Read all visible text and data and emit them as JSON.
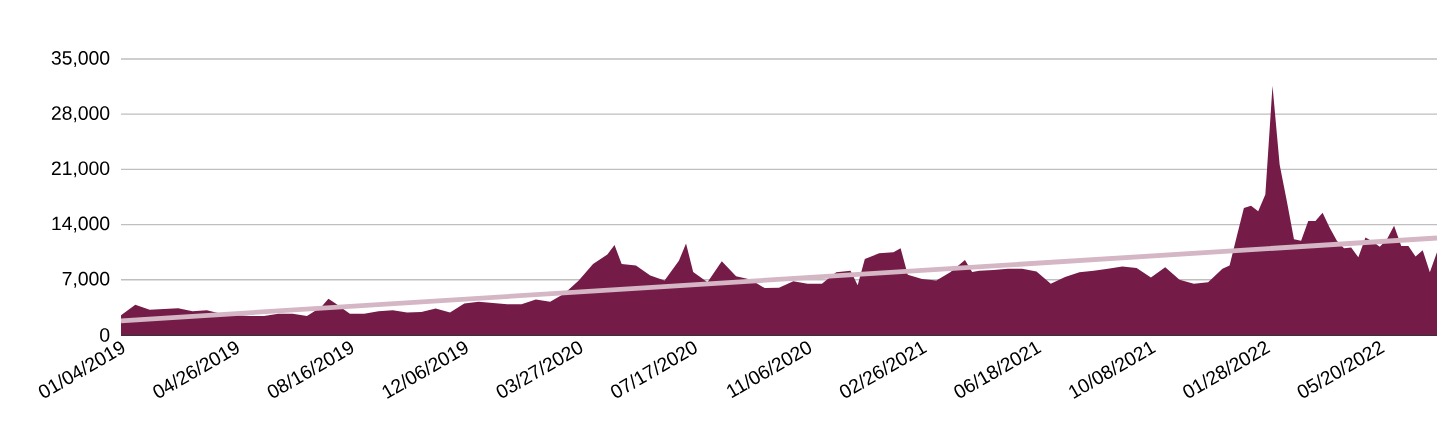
{
  "chart_data": {
    "type": "area",
    "xlim": [
      "2019-01-04",
      "2022-07-15"
    ],
    "xticks": [
      {
        "value": "2019-01-04",
        "label": "01/04/2019"
      },
      {
        "value": "2019-04-26",
        "label": "04/26/2019"
      },
      {
        "value": "2019-08-16",
        "label": "08/16/2019"
      },
      {
        "value": "2019-12-06",
        "label": "12/06/2019"
      },
      {
        "value": "2020-03-27",
        "label": "03/27/2020"
      },
      {
        "value": "2020-07-17",
        "label": "07/17/2020"
      },
      {
        "value": "2020-11-06",
        "label": "11/06/2020"
      },
      {
        "value": "2021-02-26",
        "label": "02/26/2021"
      },
      {
        "value": "2021-06-18",
        "label": "06/18/2021"
      },
      {
        "value": "2021-10-08",
        "label": "10/08/2021"
      },
      {
        "value": "2022-01-28",
        "label": "01/28/2022"
      },
      {
        "value": "2022-05-20",
        "label": "05/20/2022"
      }
    ],
    "ylim": [
      0,
      35000
    ],
    "yticks": [
      0,
      {
        "value": 7000,
        "label": "7,000"
      },
      {
        "value": 14000,
        "label": "14,000"
      },
      {
        "value": 21000,
        "label": "21,000"
      },
      {
        "value": 28000,
        "label": "28,000"
      },
      {
        "value": 35000,
        "label": "35,000"
      }
    ],
    "grid": "y",
    "series": [
      {
        "color": "#741b47",
        "x": [
          "2019-01-04",
          "2019-01-18",
          "2019-02-01",
          "2019-02-15",
          "2019-03-01",
          "2019-03-15",
          "2019-03-29",
          "2019-04-12",
          "2019-04-26",
          "2019-05-10",
          "2019-05-24",
          "2019-06-07",
          "2019-06-21",
          "2019-07-05",
          "2019-07-19",
          "2019-07-26",
          "2019-08-02",
          "2019-08-16",
          "2019-08-30",
          "2019-09-13",
          "2019-09-27",
          "2019-10-11",
          "2019-10-25",
          "2019-11-08",
          "2019-11-22",
          "2019-12-06",
          "2019-12-20",
          "2020-01-03",
          "2020-01-17",
          "2020-01-31",
          "2020-02-14",
          "2020-02-28",
          "2020-03-13",
          "2020-03-27",
          "2020-04-10",
          "2020-04-24",
          "2020-05-01",
          "2020-05-08",
          "2020-05-22",
          "2020-06-05",
          "2020-06-19",
          "2020-07-03",
          "2020-07-10",
          "2020-07-17",
          "2020-07-31",
          "2020-08-14",
          "2020-08-28",
          "2020-09-11",
          "2020-09-25",
          "2020-10-09",
          "2020-10-23",
          "2020-11-06",
          "2020-11-20",
          "2020-12-04",
          "2020-12-18",
          "2020-12-25",
          "2021-01-01",
          "2021-01-15",
          "2021-01-29",
          "2021-02-05",
          "2021-02-12",
          "2021-02-26",
          "2021-03-12",
          "2021-03-26",
          "2021-04-09",
          "2021-04-16",
          "2021-04-23",
          "2021-05-07",
          "2021-05-21",
          "2021-06-04",
          "2021-06-18",
          "2021-07-02",
          "2021-07-16",
          "2021-07-30",
          "2021-08-13",
          "2021-08-27",
          "2021-09-10",
          "2021-09-24",
          "2021-10-08",
          "2021-10-22",
          "2021-11-05",
          "2021-11-19",
          "2021-12-03",
          "2021-12-17",
          "2021-12-24",
          "2021-12-31",
          "2022-01-07",
          "2022-01-14",
          "2022-01-21",
          "2022-01-28",
          "2022-02-04",
          "2022-02-11",
          "2022-02-18",
          "2022-02-25",
          "2022-03-04",
          "2022-03-11",
          "2022-03-18",
          "2022-03-25",
          "2022-04-01",
          "2022-04-08",
          "2022-04-15",
          "2022-04-22",
          "2022-04-29",
          "2022-05-06",
          "2022-05-13",
          "2022-05-20",
          "2022-05-27",
          "2022-06-03",
          "2022-06-10",
          "2022-06-17",
          "2022-06-24",
          "2022-07-01",
          "2022-07-08",
          "2022-07-15"
        ],
        "values": [
          2500,
          3850,
          3200,
          3300,
          3400,
          3000,
          3150,
          2700,
          2500,
          2400,
          2400,
          2700,
          2700,
          2400,
          3550,
          4600,
          4000,
          2700,
          2700,
          3000,
          3150,
          2850,
          2900,
          3350,
          2850,
          4000,
          4200,
          4050,
          3900,
          3900,
          4500,
          4200,
          5250,
          6900,
          9000,
          10200,
          11400,
          9000,
          8800,
          7550,
          6900,
          9400,
          11600,
          8000,
          6700,
          9350,
          7450,
          7050,
          5950,
          6000,
          6800,
          6500,
          6500,
          7950,
          8150,
          6300,
          9650,
          10350,
          10500,
          11000,
          7650,
          7100,
          6900,
          8000,
          9500,
          8000,
          8150,
          8250,
          8400,
          8400,
          8050,
          6500,
          7350,
          7950,
          8150,
          8400,
          8700,
          8500,
          7300,
          8600,
          7000,
          6500,
          6700,
          8400,
          8800,
          12500,
          16100,
          16400,
          15700,
          17800,
          31600,
          21600,
          17000,
          12150,
          11950,
          14450,
          14450,
          15500,
          13600,
          11950,
          11000,
          11100,
          9850,
          12350,
          11850,
          11200,
          12150,
          13850,
          11300,
          11300,
          9950,
          10750,
          7950,
          10500
        ]
      },
      {
        "type": "line",
        "color": "#d5b6c4",
        "x": [
          "2019-01-04",
          "2022-07-15"
        ],
        "values": [
          1800,
          12300
        ]
      }
    ]
  }
}
